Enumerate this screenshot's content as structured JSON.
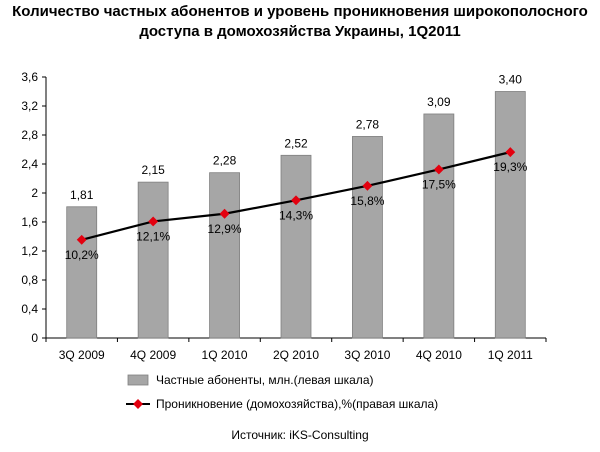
{
  "title_line1": "Количество частных абонентов и уровень проникновения широкополосного",
  "title_line2": "доступа в домохозяйства Украины, 1Q2011",
  "source": "Источник: iKS-Consulting",
  "chart_data": {
    "type": "bar",
    "categories": [
      "3Q 2009",
      "4Q 2009",
      "1Q 2010",
      "2Q 2010",
      "3Q 2010",
      "4Q 2010",
      "1Q 2011"
    ],
    "yticks": [
      "0",
      "0,4",
      "0,8",
      "1,2",
      "1,6",
      "2",
      "2,4",
      "2,8",
      "3,2",
      "3,6"
    ],
    "ylim": [
      0,
      3.6
    ],
    "grid": false,
    "legend_position": "bottom",
    "series": [
      {
        "name": "Частные абоненты, млн.(левая шкала)",
        "kind": "bar",
        "color": "#a6a6a6",
        "values": [
          1.81,
          2.15,
          2.28,
          2.52,
          2.78,
          3.09,
          3.4
        ],
        "labels": [
          "1,81",
          "2,15",
          "2,28",
          "2,52",
          "2,78",
          "3,09",
          "3,40"
        ]
      },
      {
        "name": "Проникновение (домохозяйства),%(правая шкала)",
        "kind": "line",
        "line_color": "#000000",
        "marker_color": "#e3000f",
        "values": [
          10.2,
          12.1,
          12.9,
          14.3,
          15.8,
          17.5,
          19.3
        ],
        "labels": [
          "10,2%",
          "12,1%",
          "12,9%",
          "14,3%",
          "15,8%",
          "17,5%",
          "19,3%"
        ]
      }
    ]
  }
}
